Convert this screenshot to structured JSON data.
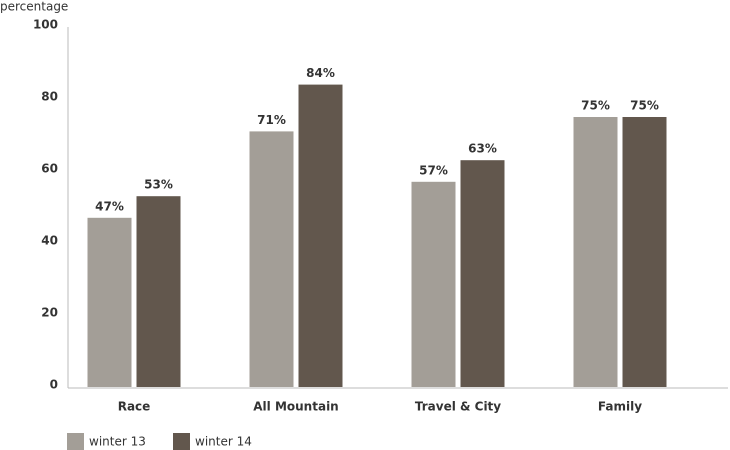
{
  "chart_data": {
    "type": "bar",
    "y_label": "percentage",
    "categories": [
      "Race",
      "All Mountain",
      "Travel & City",
      "Family"
    ],
    "series": [
      {
        "name": "winter 13",
        "color": "#a39e97",
        "values": [
          47,
          71,
          57,
          75
        ],
        "value_labels": [
          "47%",
          "71%",
          "57%",
          "75%"
        ]
      },
      {
        "name": "winter 14",
        "color": "#62574d",
        "values": [
          53,
          84,
          63,
          75
        ],
        "value_labels": [
          "53%",
          "84%",
          "63%",
          "75%"
        ]
      }
    ],
    "ylim": [
      0,
      100
    ],
    "yticks": [
      0,
      20,
      40,
      60,
      80,
      100
    ],
    "grid": false,
    "legend": "bottom"
  }
}
